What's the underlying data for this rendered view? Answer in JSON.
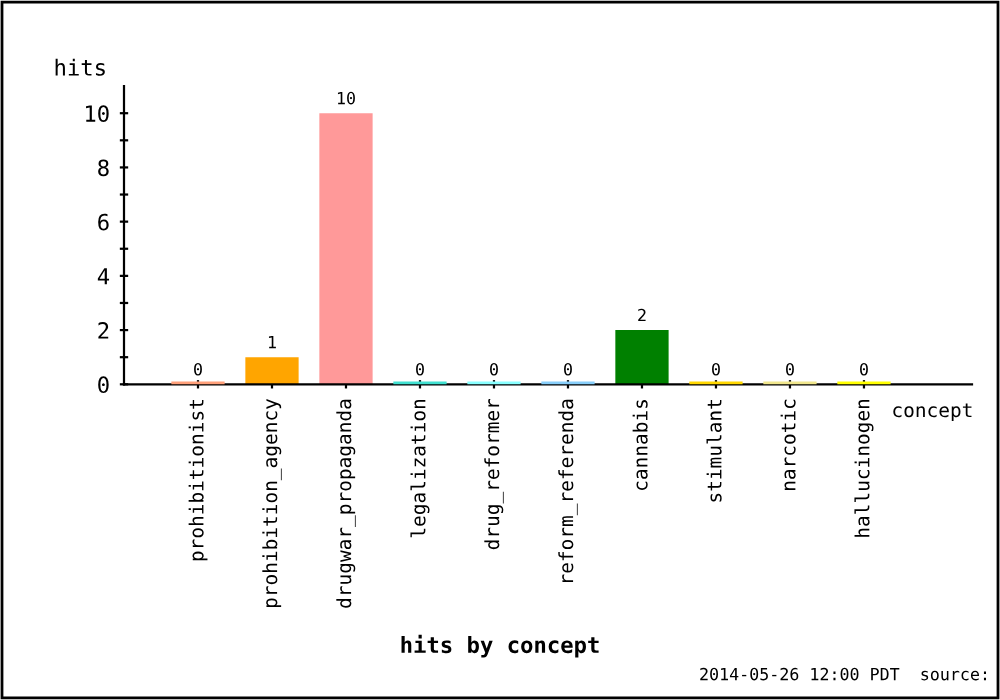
{
  "chart_data": {
    "type": "bar",
    "title": "hits by concept",
    "xlabel": "concept",
    "ylabel": "hits",
    "categories": [
      "prohibitionist",
      "prohibition_agency",
      "drugwar_propaganda",
      "legalization",
      "drug_reformer",
      "reform_referenda",
      "cannabis",
      "stimulant",
      "narcotic",
      "hallucinogen"
    ],
    "values": [
      0,
      1,
      10,
      0,
      0,
      0,
      2,
      0,
      0,
      0
    ],
    "colors": [
      "#ffa07a",
      "#ffa500",
      "#ff9999",
      "#40e0d0",
      "#87ffff",
      "#87cefa",
      "#008000",
      "#ffd700",
      "#f0e68c",
      "#ffff00"
    ],
    "ylim": [
      0,
      11
    ],
    "yticks": [
      0,
      {
        "value": 1,
        "label": null
      },
      2,
      {
        "value": 3,
        "label": null
      },
      4,
      {
        "value": 5,
        "label": null
      },
      6,
      {
        "value": 7,
        "label": null
      },
      8,
      {
        "value": 9,
        "label": null
      },
      10
    ],
    "data_labels": true,
    "grid": false,
    "legend": false,
    "annotations": [
      "2014-05-26 12:00 PDT  source:"
    ]
  }
}
